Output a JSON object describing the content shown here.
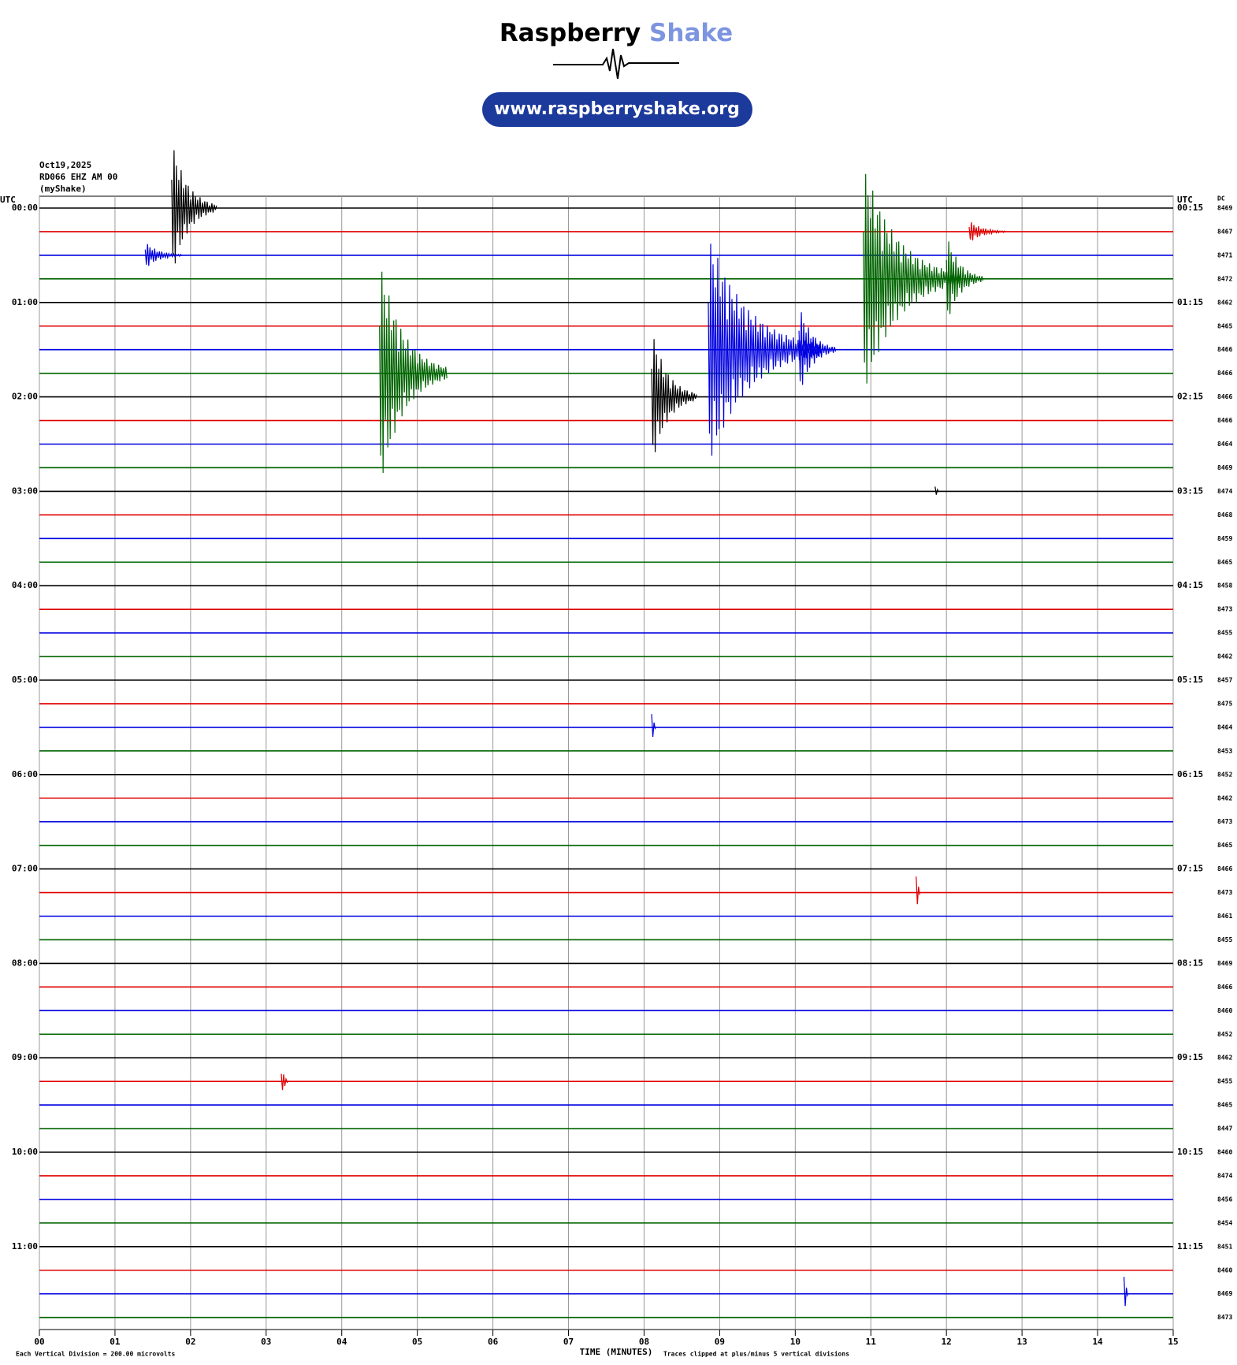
{
  "header": {
    "brand_1": "Raspberry",
    "brand_2": "Shake",
    "url": "www.raspberryshake.org"
  },
  "chart_data": {
    "type": "helicorder",
    "date": "Oct19,2025",
    "station": "RD066 EHZ AM 00",
    "network": "(myShake)",
    "left_axis_label": "UTC",
    "right_axis_label": "UTC",
    "dc_label": "DC",
    "x_label": "TIME (MINUTES)",
    "scale_note": "Each Vertical Division =  200.00 microvolts",
    "clip_note": "Traces clipped at plus/minus 5 vertical divisions",
    "xlim": [
      0,
      15
    ],
    "xticks": [
      {
        "value": 0,
        "label": "00"
      },
      {
        "value": 1,
        "label": "01"
      },
      {
        "value": 2,
        "label": "02"
      },
      {
        "value": 3,
        "label": "03"
      },
      {
        "value": 4,
        "label": "04"
      },
      {
        "value": 5,
        "label": "05"
      },
      {
        "value": 6,
        "label": "06"
      },
      {
        "value": 7,
        "label": "07"
      },
      {
        "value": 8,
        "label": "08"
      },
      {
        "value": 9,
        "label": "09"
      },
      {
        "value": 10,
        "label": "10"
      },
      {
        "value": 11,
        "label": "11"
      },
      {
        "value": 12,
        "label": "12"
      },
      {
        "value": 13,
        "label": "13"
      },
      {
        "value": 14,
        "label": "14"
      },
      {
        "value": 15,
        "label": "15"
      }
    ],
    "colors": [
      "#000000",
      "#e00000",
      "#0000e0",
      "#006400"
    ],
    "hours": [
      {
        "left": "00:00",
        "right": "00:15"
      },
      {
        "left": "01:00",
        "right": "01:15"
      },
      {
        "left": "02:00",
        "right": "02:15"
      },
      {
        "left": "03:00",
        "right": "03:15"
      },
      {
        "left": "04:00",
        "right": "04:15"
      },
      {
        "left": "05:00",
        "right": "05:15"
      },
      {
        "left": "06:00",
        "right": "06:15"
      },
      {
        "left": "07:00",
        "right": "07:15"
      },
      {
        "left": "08:00",
        "right": "08:15"
      },
      {
        "left": "09:00",
        "right": "09:15"
      },
      {
        "left": "10:00",
        "right": "10:15"
      },
      {
        "left": "11:00",
        "right": "11:15"
      }
    ],
    "dc": [
      8469,
      8467,
      8471,
      8472,
      8462,
      8465,
      8466,
      8466,
      8466,
      8466,
      8464,
      8469,
      8474,
      8468,
      8459,
      8465,
      8458,
      8473,
      8455,
      8462,
      8457,
      8475,
      8464,
      8453,
      8452,
      8462,
      8473,
      8465,
      8466,
      8473,
      8461,
      8455,
      8469,
      8466,
      8460,
      8452,
      8462,
      8455,
      8465,
      8447,
      8460,
      8474,
      8456,
      8454,
      8451,
      8460,
      8469,
      8473
    ],
    "events": [
      {
        "trace": 0,
        "minute": 1.75,
        "amplitude": 3,
        "duration": 0.6
      },
      {
        "trace": 1,
        "minute": 12.3,
        "amplitude": 0.5,
        "duration": 0.5
      },
      {
        "trace": 2,
        "minute": 1.4,
        "amplitude": 0.6,
        "duration": 0.5
      },
      {
        "trace": 3,
        "minute": 10.9,
        "amplitude": 5,
        "duration": 1.3
      },
      {
        "trace": 3,
        "minute": 12.0,
        "amplitude": 2,
        "duration": 0.5
      },
      {
        "trace": 6,
        "minute": 8.85,
        "amplitude": 5,
        "duration": 1.5
      },
      {
        "trace": 6,
        "minute": 10.05,
        "amplitude": 2,
        "duration": 0.5
      },
      {
        "trace": 7,
        "minute": 4.5,
        "amplitude": 5,
        "duration": 0.9
      },
      {
        "trace": 8,
        "minute": 8.1,
        "amplitude": 3,
        "duration": 0.6
      },
      {
        "trace": 12,
        "minute": 11.85,
        "amplitude": 0.5,
        "duration": 0.05
      },
      {
        "trace": 22,
        "minute": 8.1,
        "amplitude": 1.4,
        "duration": 0.05
      },
      {
        "trace": 29,
        "minute": 11.6,
        "amplitude": 1.7,
        "duration": 0.05
      },
      {
        "trace": 37,
        "minute": 3.2,
        "amplitude": 0.8,
        "duration": 0.1
      },
      {
        "trace": 46,
        "minute": 14.35,
        "amplitude": 1.8,
        "duration": 0.05
      }
    ]
  }
}
